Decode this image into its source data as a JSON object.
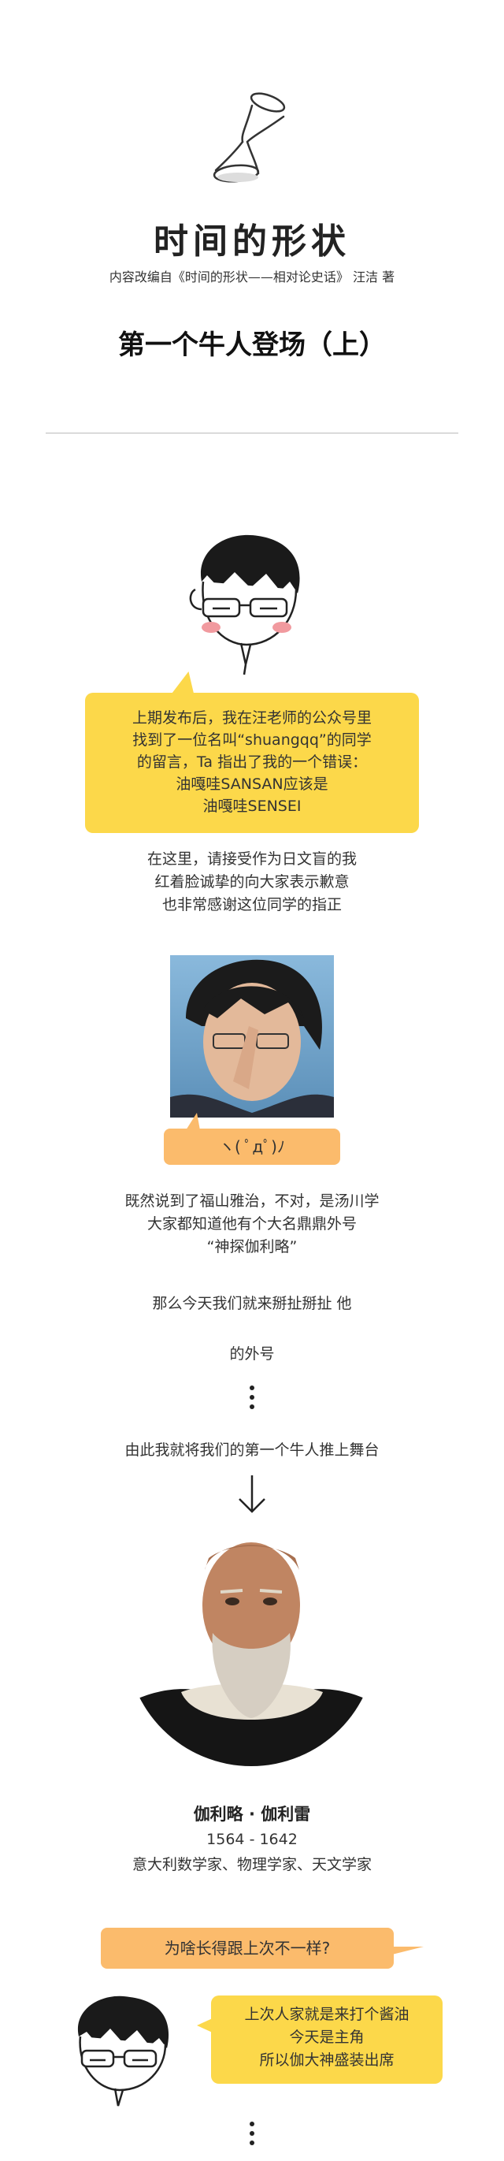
{
  "header": {
    "title": "时间的形状",
    "subtitle": "内容改编自《时间的形状——相对论史话》 汪洁 著",
    "chapter": "第一个牛人登场（上）"
  },
  "intro_bubble": {
    "lines": [
      "上期发布后，我在汪老师的公众号里",
      "找到了一位名叫“shuangqq”的同学",
      "的留言，Ta 指出了我的一个错误：",
      "油嘎哇SANSAN应该是",
      "油嘎哇SENSEI"
    ]
  },
  "apology": {
    "lines": [
      "在这里，请接受作为日文盲的我",
      "红着脸诚挚的向大家表示歉意",
      "也非常感谢这位同学的指正"
    ]
  },
  "emoticon": "ヽ( ﾟдﾟ)ﾉ",
  "story": {
    "p1": [
      "既然说到了福山雅治，不对，是汤川学",
      "大家都知道他有个大名鼎鼎外号",
      "“神探伽利略”"
    ],
    "p2": "那么今天我们就来掰扯掰扯 他",
    "p3": "的外号",
    "p4": "由此我就将我们的第一个牛人推上舞台"
  },
  "galileo": {
    "name": "伽利略 · 伽利雷",
    "years": "1564 - 1642",
    "desc": "意大利数学家、物理学家、天文学家"
  },
  "dialog": {
    "question": "为啥长得跟上次不一样?",
    "answer": [
      "上次人家就是来打个酱油",
      "今天是主角",
      "所以伽大神盛装出席"
    ]
  },
  "colors": {
    "yellow": "#fcd84a",
    "orange": "#fbbb6c"
  }
}
